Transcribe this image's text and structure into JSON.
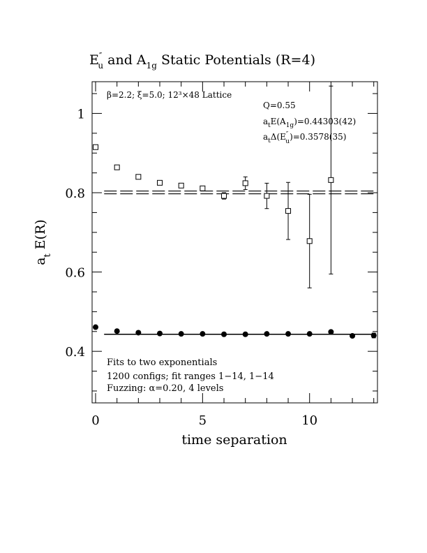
{
  "chart_data": {
    "type": "scatter",
    "title": {
      "main_1": "E",
      "main_1_sup": "″",
      "main_1_sub": "u",
      "main_2": " and A",
      "main_2_sub": "1g",
      "main_3": " Static Potentials (R=4)"
    },
    "xlabel": "time separation",
    "ylabel": "a",
    "ylabel_sub": "t",
    "ylabel_rest": " E(R)",
    "xlim": [
      0,
      13
    ],
    "ylim": [
      0.27,
      1.08
    ],
    "xticks": [
      0,
      5,
      10
    ],
    "xtick_labels": [
      "0",
      "5",
      "10"
    ],
    "yticks": [
      0.4,
      0.6,
      0.8,
      1.0
    ],
    "ytick_labels": [
      "0.4",
      "0.6",
      "0.8",
      "1"
    ],
    "x_minor_step": 1,
    "y_minor_step": 0.05,
    "info_text": "β=2.2; ξ=5.0; 12³×48 Lattice",
    "fit_info": {
      "q": "Q=0.55",
      "e_a1g_prefix": "a",
      "e_a1g_mid": "E(A",
      "e_a1g_sub": "1g",
      "e_a1g_value": ")=0.44303(42)",
      "delta_prefix": "a",
      "delta_mid": "Δ(E",
      "delta_sup": "″",
      "delta_sub": "u",
      "delta_value": ")=0.3578(35)"
    },
    "notes": [
      "Fits to two exponentials",
      "1200 configs; fit ranges 1−14, 1−14",
      "Fuzzing: α=0.20, 4 levels"
    ],
    "series": [
      {
        "marker": "open-square",
        "x": [
          0,
          1,
          2,
          3,
          4,
          5,
          6,
          7,
          8,
          9,
          10,
          11
        ],
        "y": [
          0.915,
          0.864,
          0.84,
          0.825,
          0.818,
          0.811,
          0.792,
          0.824,
          0.792,
          0.754,
          0.678,
          0.832
        ],
        "yerr": [
          0.002,
          0.003,
          0.003,
          0.003,
          0.004,
          0.005,
          0.008,
          0.016,
          0.032,
          0.072,
          0.118,
          0.237
        ]
      },
      {
        "marker": "filled-circle",
        "x": [
          0,
          1,
          2,
          3,
          4,
          5,
          6,
          7,
          8,
          9,
          10,
          11,
          12,
          13
        ],
        "y": [
          0.461,
          0.451,
          0.447,
          0.445,
          0.444,
          0.444,
          0.443,
          0.443,
          0.444,
          0.444,
          0.444,
          0.449,
          0.439,
          0.44
        ],
        "yerr": [
          0.001,
          0.001,
          0.001,
          0.001,
          0.001,
          0.001,
          0.001,
          0.001,
          0.002,
          0.002,
          0.003,
          0.004,
          0.004,
          0.006
        ]
      }
    ],
    "fit_lines": [
      {
        "style": "double-dashed",
        "x_range": [
          0.4,
          13
        ],
        "y": 0.8008,
        "y_band": [
          0.7973,
          0.8043
        ]
      },
      {
        "style": "double-solid",
        "x_range": [
          0.4,
          13
        ],
        "y": 0.44303,
        "y_band": [
          0.44261,
          0.44345
        ]
      }
    ]
  }
}
